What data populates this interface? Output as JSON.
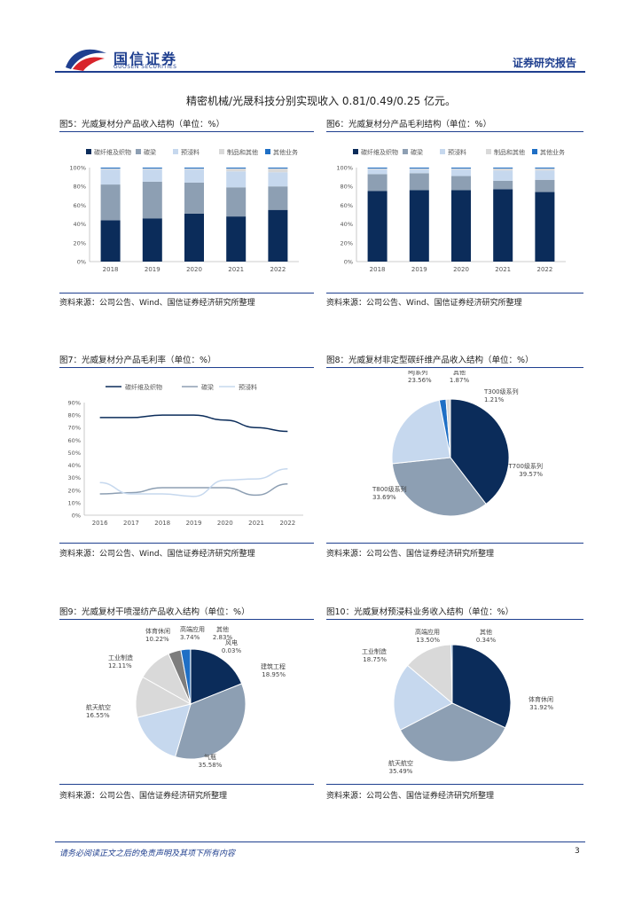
{
  "header": {
    "brand_cn": "国信证券",
    "brand_en": "GUOSEN SECURITIES",
    "report_type": "证券研究报告"
  },
  "intro_text": "精密机械/光晟科技分别实现收入 0.81/0.49/0.25 亿元。",
  "colors": {
    "navy": "#0b2c5a",
    "gray_blue": "#8d9fb3",
    "light_blue": "#c6d8ee",
    "light_gray": "#d9d9d9",
    "bright_blue": "#1f6fc5",
    "dark_gray": "#7d7d7d"
  },
  "figures": {
    "fig5": {
      "title": "图5：光威复材分产品收入结构（单位：%）",
      "source": "资料来源：公司公告、Wind、国信证券经济研究所整理"
    },
    "fig6": {
      "title": "图6：光威复材分产品毛利结构（单位：%）",
      "source": "资料来源：公司公告、Wind、国信证券经济研究所整理"
    },
    "fig7": {
      "title": "图7：光威复材分产品毛利率（单位：%）",
      "source": "资料来源：公司公告、Wind、国信证券经济研究所整理"
    },
    "fig8": {
      "title": "图8：光威复材非定型碳纤维产品收入结构（单位：%）",
      "source": "资料来源：公司公告、国信证券经济研究所整理"
    },
    "fig9": {
      "title": "图9：光威复材干喷湿纺产品收入结构（单位：%）",
      "source": "资料来源：公司公告、国信证券经济研究所整理"
    },
    "fig10": {
      "title": "图10：光威复材预浸料业务收入结构（单位：%）",
      "source": "资料来源：公司公告、国信证券经济研究所整理"
    }
  },
  "chart_data": [
    {
      "id": "fig5",
      "type": "bar",
      "stacked": true,
      "categories": [
        "2018",
        "2019",
        "2020",
        "2021",
        "2022"
      ],
      "series": [
        {
          "name": "碳纤维及织物",
          "values": [
            44,
            46,
            51,
            48,
            55
          ]
        },
        {
          "name": "碳梁",
          "values": [
            38,
            39,
            33,
            31,
            25
          ]
        },
        {
          "name": "预浸料",
          "values": [
            16,
            13,
            14,
            17,
            15
          ]
        },
        {
          "name": "制品和其他",
          "values": [
            1,
            1,
            1,
            3,
            4
          ]
        },
        {
          "name": "其他业务",
          "values": [
            1,
            1,
            1,
            1,
            1
          ]
        }
      ],
      "yticks": [
        "0%",
        "20%",
        "40%",
        "60%",
        "80%",
        "100%"
      ],
      "ylim": [
        0,
        100
      ]
    },
    {
      "id": "fig6",
      "type": "bar",
      "stacked": true,
      "categories": [
        "2018",
        "2019",
        "2020",
        "2021",
        "2022"
      ],
      "series": [
        {
          "name": "碳纤维及织物",
          "values": [
            75,
            76,
            76,
            77,
            74
          ]
        },
        {
          "name": "碳梁",
          "values": [
            18,
            18,
            15,
            9,
            13
          ]
        },
        {
          "name": "预浸料",
          "values": [
            5,
            4,
            7,
            11,
            10
          ]
        },
        {
          "name": "制品和其他",
          "values": [
            1,
            1,
            1,
            2,
            2
          ]
        },
        {
          "name": "其他业务",
          "values": [
            1,
            1,
            1,
            1,
            1
          ]
        }
      ],
      "yticks": [
        "0%",
        "20%",
        "40%",
        "60%",
        "80%",
        "100%"
      ],
      "ylim": [
        0,
        100
      ]
    },
    {
      "id": "fig7",
      "type": "line",
      "x": [
        "2016",
        "2017",
        "2018",
        "2019",
        "2020",
        "2021",
        "2022"
      ],
      "series": [
        {
          "name": "碳纤维及织物",
          "values": [
            78,
            78,
            80,
            80,
            76,
            70,
            67
          ]
        },
        {
          "name": "碳梁",
          "values": [
            17,
            18,
            22,
            22,
            22,
            16,
            25
          ]
        },
        {
          "name": "预浸料",
          "values": [
            26,
            17,
            17,
            15,
            28,
            29,
            37
          ]
        }
      ],
      "yticks": [
        "0%",
        "10%",
        "20%",
        "30%",
        "40%",
        "50%",
        "60%",
        "70%",
        "80%",
        "90%"
      ],
      "ylim": [
        0,
        90
      ]
    },
    {
      "id": "fig8",
      "type": "pie",
      "slices": [
        {
          "label": "T700级系列",
          "value_text": "39.57%",
          "value": 39.57
        },
        {
          "label": "T800级系列",
          "value_text": "33.69%",
          "value": 33.69
        },
        {
          "label": "MJ系列",
          "value_text": "23.56%",
          "value": 23.56
        },
        {
          "label": "其他",
          "value_text": "1.87%",
          "value": 1.87
        },
        {
          "label": "T300级系列",
          "value_text": "1.21%",
          "value": 1.21
        }
      ]
    },
    {
      "id": "fig9",
      "type": "pie",
      "slices": [
        {
          "label": "建筑工程",
          "value_text": "18.95%",
          "value": 18.95
        },
        {
          "label": "气瓶",
          "value_text": "35.58%",
          "value": 35.58
        },
        {
          "label": "航天航空",
          "value_text": "16.55%",
          "value": 16.55
        },
        {
          "label": "工业制造",
          "value_text": "12.11%",
          "value": 12.11
        },
        {
          "label": "体育休闲",
          "value_text": "10.22%",
          "value": 10.22
        },
        {
          "label": "高端应用",
          "value_text": "3.74%",
          "value": 3.74
        },
        {
          "label": "其他",
          "value_text": "2.83%",
          "value": 2.83
        },
        {
          "label": "风电",
          "value_text": "0.03%",
          "value": 0.03
        }
      ]
    },
    {
      "id": "fig10",
      "type": "pie",
      "slices": [
        {
          "label": "体育休闲",
          "value_text": "31.92%",
          "value": 31.92
        },
        {
          "label": "航天航空",
          "value_text": "35.49%",
          "value": 35.49
        },
        {
          "label": "工业制造",
          "value_text": "18.75%",
          "value": 18.75
        },
        {
          "label": "高端应用",
          "value_text": "13.50%",
          "value": 13.5
        },
        {
          "label": "其他",
          "value_text": "0.34%",
          "value": 0.34
        }
      ]
    }
  ],
  "footer": {
    "disclaimer": "请务必阅读正文之后的免责声明及其项下所有内容",
    "page_number": "3"
  }
}
